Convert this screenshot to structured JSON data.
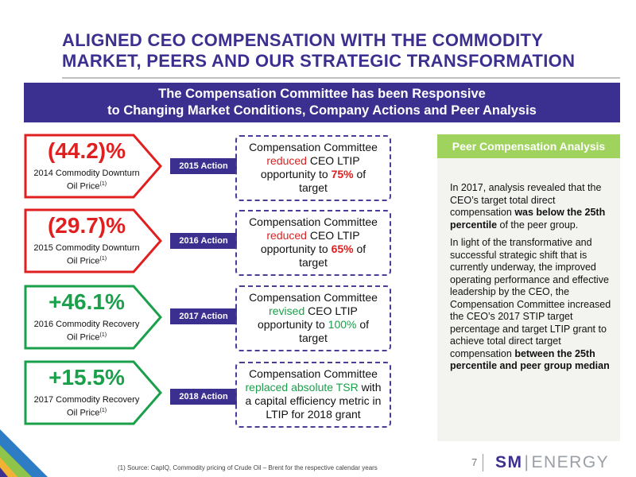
{
  "title": {
    "line1": "ALIGNED CEO COMPENSATION WITH THE COMMODITY",
    "line2": "MARKET, PEERS AND OUR STRATEGIC TRANSFORMATION"
  },
  "banner": {
    "line1": "The Compensation Committee has been Responsive",
    "line2": "to Changing Market Conditions, Company Actions and Peer Analysis"
  },
  "rows": [
    {
      "pct": "(44.2)%",
      "sub1": "2014 Commodity Downturn",
      "sub2": "Oil Price",
      "sup": "(1)",
      "color": "#e02020",
      "action": "2015 Action",
      "d1": "Compensation Committee",
      "hl": "reduced",
      "d2": " CEO LTIP",
      "d3": "opportunity to ",
      "val": "75%",
      "d4": " of",
      "d5": "target"
    },
    {
      "pct": "(29.7)%",
      "sub1": "2015 Commodity Downturn",
      "sub2": "Oil Price",
      "sup": "(1)",
      "color": "#e02020",
      "action": "2016 Action",
      "d1": "Compensation Committee",
      "hl": "reduced",
      "d2": " CEO LTIP",
      "d3": "opportunity to ",
      "val": "65%",
      "d4": " of",
      "d5": "target"
    },
    {
      "pct": "+46.1%",
      "sub1": "2016 Commodity Recovery",
      "sub2": "Oil Price",
      "sup": "(1)",
      "color": "#1aa04a",
      "action": "2017 Action",
      "d1": "Compensation Committee",
      "hl": "revised",
      "d2": " CEO LTIP",
      "d3": "opportunity to ",
      "val": "100%",
      "d4": " of",
      "d5": "target"
    },
    {
      "pct": "+15.5%",
      "sub1": "2017 Commodity Recovery",
      "sub2": "Oil Price",
      "sup": "(1)",
      "color": "#1aa04a",
      "action": "2018 Action",
      "d1": "Compensation Committee",
      "hl": "replaced absolute TSR",
      "d2": " with",
      "d3": "a capital efficiency metric in",
      "d4": "LTIP for 2018 grant"
    }
  ],
  "peer": {
    "heading": "Peer Compensation Analysis",
    "p1a": "In 2017, analysis revealed that the CEO’s target total direct compensation ",
    "p1b": "was below the 25th percentile",
    "p1c": " of the peer group.",
    "p2a": "In light of the transformative and successful strategic shift that is currently underway, the improved operating performance and effective leadership by the CEO, the Compensation Committee increased the CEO’s 2017 STIP target percentage and target LTIP grant to achieve total direct target compensation ",
    "p2b": "between the 25th percentile and peer group median"
  },
  "footer": {
    "footnote": "(1)    Source: CapIQ, Commodity pricing of Crude Oil – Brent for the respective calendar years",
    "page": "7",
    "logo_sm": "SM",
    "logo_bar": "|",
    "logo_energy": "ENERGY"
  },
  "colors": {
    "brand_purple": "#3b2f8f",
    "negative_red": "#e02020",
    "positive_green": "#1aa04a",
    "peer_green": "#9fd35e"
  }
}
